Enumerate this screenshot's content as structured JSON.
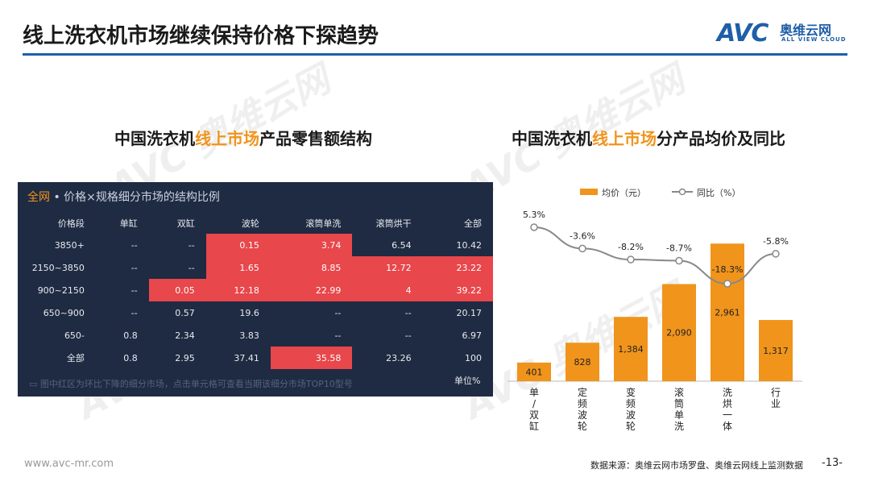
{
  "header": {
    "title": "线上洗衣机市场继续保持价格下探趋势",
    "logo": {
      "mark": "AVC",
      "cn": "奥维云网",
      "en": "ALL VIEW CLOUD"
    }
  },
  "watermark": {
    "text": "AVC 奥维云网"
  },
  "left_panel": {
    "title_prefix": "中国洗衣机",
    "title_highlight": "线上市场",
    "title_suffix": "产品零售额结构",
    "table_tab": "全网",
    "table_caption": "• 价格×规格细分市场的结构比例",
    "columns": [
      "价格段",
      "单缸",
      "双缸",
      "波轮",
      "滚筒单洗",
      "滚筒烘干",
      "全部"
    ],
    "rows": [
      {
        "cells": [
          "3850+",
          "--",
          "--",
          "0.15",
          "3.74",
          "6.54",
          "10.42"
        ],
        "red": [
          3,
          4
        ]
      },
      {
        "cells": [
          "2150~3850",
          "--",
          "--",
          "1.65",
          "8.85",
          "12.72",
          "23.22"
        ],
        "red": [
          3,
          4,
          5,
          6
        ]
      },
      {
        "cells": [
          "900~2150",
          "--",
          "0.05",
          "12.18",
          "22.99",
          "4",
          "39.22"
        ],
        "red": [
          2,
          3,
          4,
          5,
          6
        ]
      },
      {
        "cells": [
          "650~900",
          "--",
          "0.57",
          "19.6",
          "--",
          "--",
          "20.17"
        ],
        "red": []
      },
      {
        "cells": [
          "650-",
          "0.8",
          "2.34",
          "3.83",
          "--",
          "--",
          "6.97"
        ],
        "red": []
      },
      {
        "cells": [
          "全部",
          "0.8",
          "2.95",
          "37.41",
          "35.58",
          "23.26",
          "100"
        ],
        "red": [
          4
        ]
      }
    ],
    "note": "图中红区为环比下降的细分市场，点击单元格可查看当期该细分市场TOP10型号",
    "unit": "单位%"
  },
  "right_panel": {
    "title_prefix": "中国洗衣机",
    "title_highlight": "线上市场",
    "title_suffix": "分产品均价及同比"
  },
  "chart_data": {
    "type": "bar",
    "categories": [
      "单/双缸",
      "定频波轮",
      "变频波轮",
      "滚筒单洗",
      "洗烘一体",
      "行业"
    ],
    "category_lines": [
      [
        "单",
        "/",
        "双",
        "缸"
      ],
      [
        "定",
        "频",
        "波",
        "轮"
      ],
      [
        "变",
        "频",
        "波",
        "轮"
      ],
      [
        "滚",
        "筒",
        "单",
        "洗"
      ],
      [
        "洗",
        "烘",
        "一",
        "体"
      ],
      [
        "行",
        "业"
      ]
    ],
    "series": [
      {
        "name": "均价（元）",
        "type": "bar",
        "values": [
          401,
          828,
          1384,
          2090,
          2961,
          1317
        ],
        "labels": [
          "401",
          "828",
          "1,384",
          "2,090",
          "2,961",
          "1,317"
        ],
        "color": "#f0941c"
      },
      {
        "name": "同比（%）",
        "type": "line",
        "values": [
          5.3,
          -3.6,
          -8.2,
          -8.7,
          -18.3,
          -5.8
        ],
        "labels": [
          "5.3%",
          "-3.6%",
          "-8.2%",
          "-8.7%",
          "-18.3%",
          "-5.8%"
        ],
        "color": "#888888"
      }
    ],
    "legend_position": "top",
    "grid": false
  },
  "footer": {
    "url": "www.avc-mr.com",
    "source": "数据来源：奥维云网市场罗盘、奥维云网线上监测数据",
    "page": "-13-"
  }
}
